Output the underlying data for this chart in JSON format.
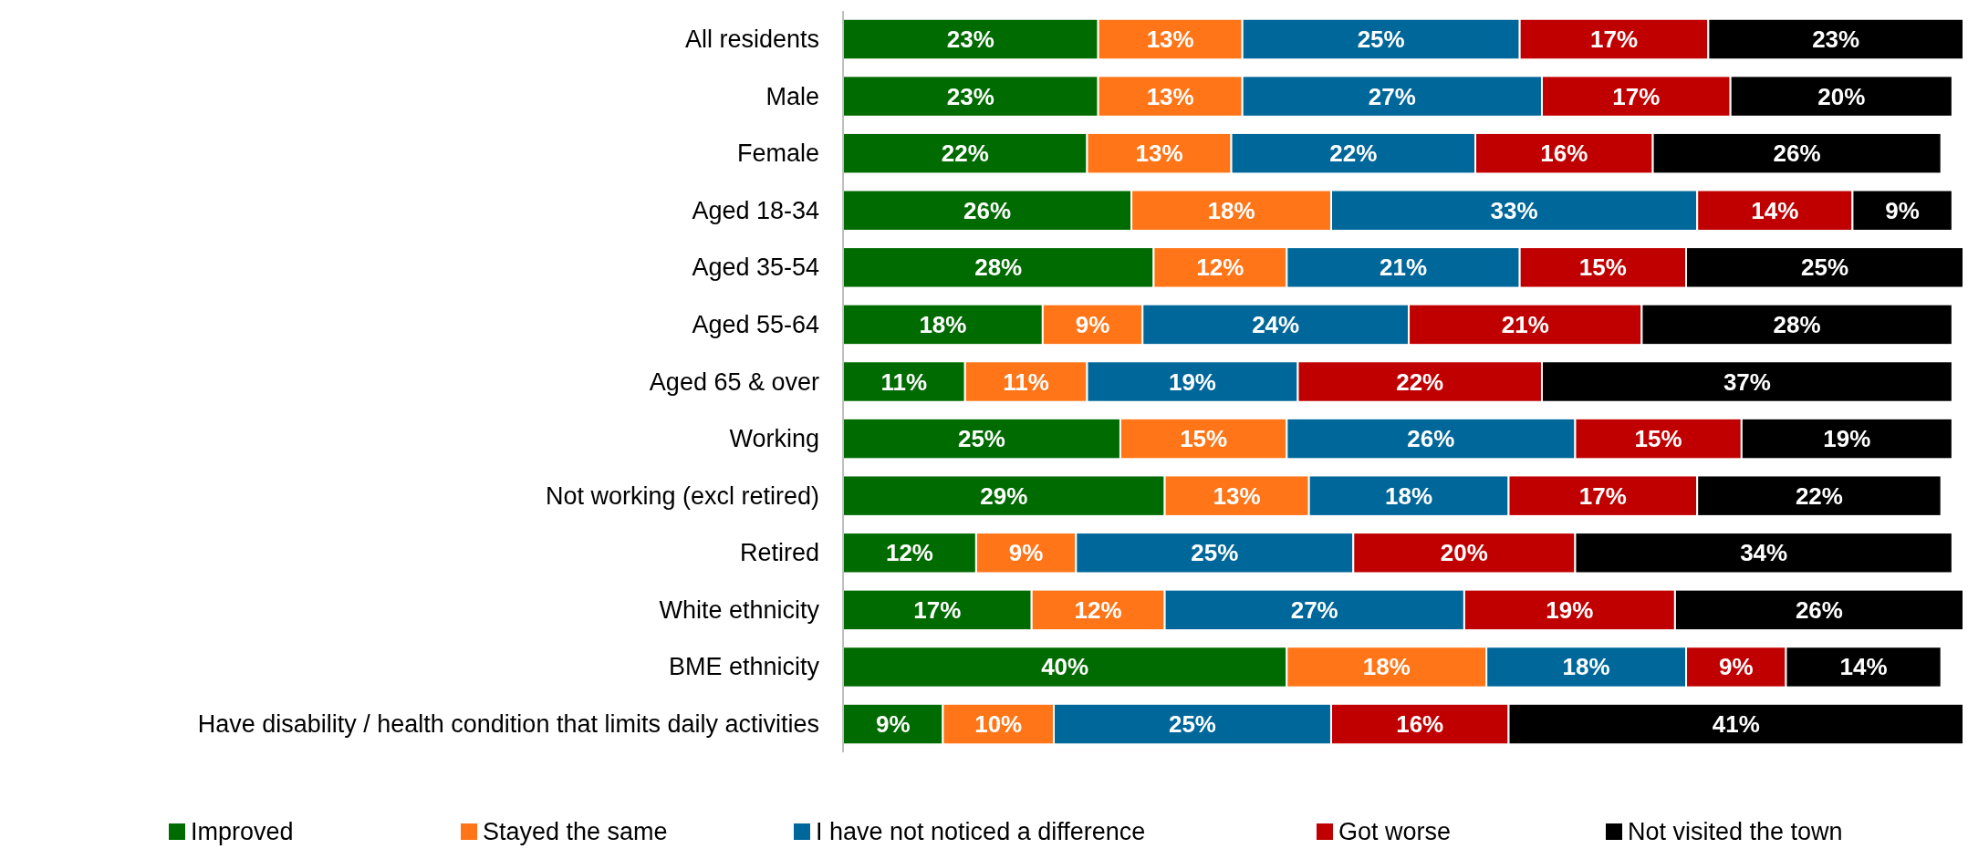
{
  "chart_data": {
    "type": "bar",
    "orientation": "horizontal",
    "stacked": true,
    "legend": "bottom",
    "categories": [
      "All residents",
      "Male",
      "Female",
      "Aged 18-34",
      "Aged 35-54",
      "Aged 55-64",
      "Aged 65 & over",
      "Working",
      "Not working (excl retired)",
      "Retired",
      "White ethnicity",
      "BME ethnicity",
      "Have disability / health condition that limits daily activities"
    ],
    "series": [
      {
        "name": "Improved",
        "color": "#006b00",
        "values": [
          23,
          23,
          22,
          26,
          28,
          18,
          11,
          25,
          29,
          12,
          17,
          40,
          9
        ],
        "value_labels": [
          "23%",
          "23%",
          "22%",
          "26%",
          "28%",
          "18%",
          "11%",
          "25%",
          "29%",
          "12%",
          "17%",
          "40%",
          "9%"
        ]
      },
      {
        "name": "Stayed the same",
        "color": "#ff7518",
        "values": [
          13,
          13,
          13,
          18,
          12,
          9,
          11,
          15,
          13,
          9,
          12,
          18,
          10
        ],
        "value_labels": [
          "13%",
          "13%",
          "13%",
          "18%",
          "12%",
          "9%",
          "11%",
          "15%",
          "13%",
          "9%",
          "12%",
          "18%",
          "10%"
        ]
      },
      {
        "name": "I have not noticed a difference",
        "color": "#00679a",
        "values": [
          25,
          27,
          22,
          33,
          21,
          24,
          19,
          26,
          18,
          25,
          27,
          18,
          25
        ],
        "value_labels": [
          "25%",
          "27%",
          "22%",
          "33%",
          "21%",
          "24%",
          "19%",
          "26%",
          "18%",
          "25%",
          "27%",
          "18%",
          "25%"
        ]
      },
      {
        "name": "Got worse",
        "color": "#c00000",
        "values": [
          17,
          17,
          16,
          14,
          15,
          21,
          22,
          15,
          17,
          20,
          19,
          9,
          16
        ],
        "value_labels": [
          "17%",
          "17%",
          "16%",
          "14%",
          "15%",
          "21%",
          "22%",
          "15%",
          "17%",
          "20%",
          "19%",
          "9%",
          "16%"
        ]
      },
      {
        "name": "Not visited the town",
        "color": "#000000",
        "values": [
          23,
          20,
          26,
          9,
          25,
          28,
          37,
          19,
          22,
          34,
          26,
          14,
          41
        ],
        "value_labels": [
          "23%",
          "20%",
          "26%",
          "9%",
          "25%",
          "28%",
          "37%",
          "19%",
          "22%",
          "34%",
          "26%",
          "14%",
          "41%"
        ]
      }
    ]
  }
}
